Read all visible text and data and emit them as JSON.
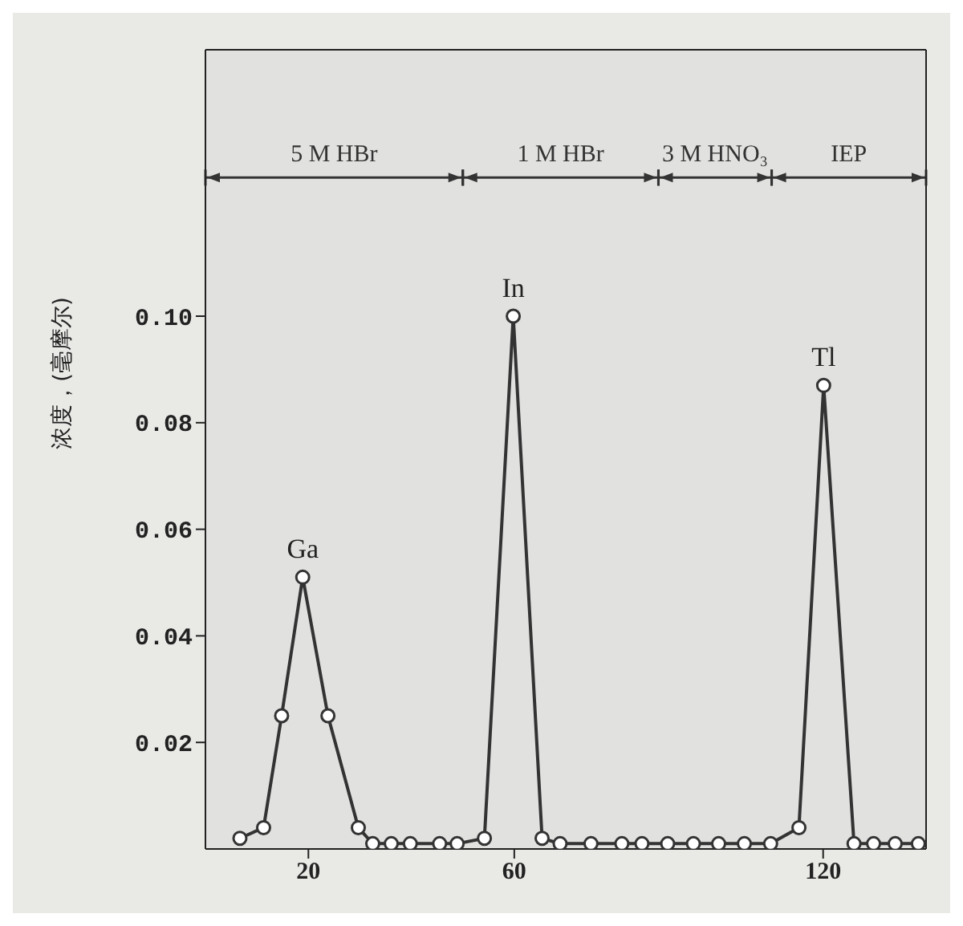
{
  "chart_data": {
    "type": "line",
    "ylabel": "浓度，(毫摩尔)",
    "x": [
      6.7,
      11.3,
      14.8,
      18.9,
      23.8,
      29.7,
      32.5,
      36.1,
      39.8,
      45.5,
      48.9,
      54.2,
      59.8,
      65.4,
      68.9,
      74.9,
      80.9,
      84.8,
      89.8,
      94.8,
      99.7,
      104.7,
      109.8,
      115.3,
      120.1,
      126,
      129.8,
      134,
      138.5
    ],
    "series": [
      {
        "color": "#333333",
        "values": [
          0.002,
          0.004,
          0.025,
          0.051,
          0.025,
          0.004,
          0.001,
          0.001,
          0.001,
          0.001,
          0.001,
          0.002,
          0.1,
          0.002,
          0.001,
          0.001,
          0.001,
          0.001,
          0.001,
          0.001,
          0.001,
          0.001,
          0.001,
          0.004,
          0.087,
          0.001,
          0.001,
          0.001,
          0.001
        ]
      }
    ],
    "xlim": [
      0,
      140
    ],
    "xticks": [
      20,
      60,
      120
    ],
    "ylim": [
      0,
      0.15
    ],
    "yticks": [
      0.02,
      0.04,
      0.06,
      {
        "value": 0.1,
        "label": "0.10"
      },
      0.08
    ],
    "marker": "circle",
    "line_style": "solid",
    "grid": false,
    "legend": false,
    "annotations": [
      {
        "text": "Ga",
        "x": 18.9,
        "y": 0.051
      },
      {
        "text": "In",
        "x": 59.8,
        "y": 0.1
      },
      {
        "text": "Tl",
        "x": 120.1,
        "y": 0.087
      }
    ],
    "bands": [
      {
        "axis": "x",
        "from": 0,
        "to": 50,
        "label": "5 M HBr"
      },
      {
        "axis": "x",
        "from": 50,
        "to": 88,
        "label": "1 M HBr"
      },
      {
        "axis": "x",
        "from": 88,
        "to": 110,
        "label": "3 M HNO₃"
      },
      {
        "axis": "x",
        "from": 110,
        "to": 140,
        "label": "IEP"
      }
    ]
  }
}
